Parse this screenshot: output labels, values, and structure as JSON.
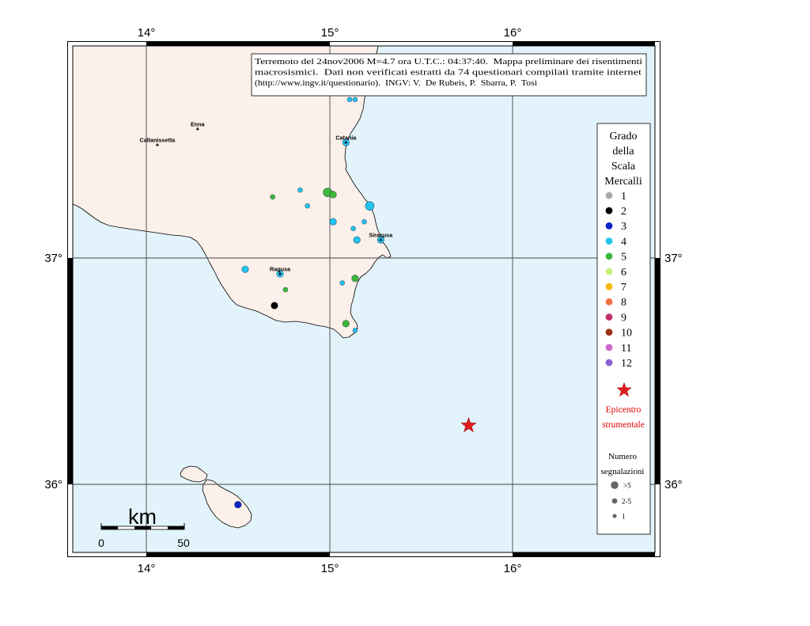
{
  "map": {
    "graticule": {
      "lon_labels": [
        "14°",
        "15°",
        "16°"
      ],
      "lat_labels": [
        "37°",
        "36°"
      ]
    },
    "colors": {
      "sea": "#e2f3fb",
      "land": "#fcf0ea",
      "grid": "#444444",
      "epicenter": "#e31d1d"
    },
    "cities": [
      {
        "name": "Enna",
        "lon": 14.28,
        "lat": 37.57
      },
      {
        "name": "Caltanissetta",
        "lon": 14.06,
        "lat": 37.5
      },
      {
        "name": "Catania",
        "lon": 15.09,
        "lat": 37.51
      },
      {
        "name": "Siracusa",
        "lon": 15.28,
        "lat": 37.08
      },
      {
        "name": "Ragusa",
        "lon": 14.73,
        "lat": 36.93
      }
    ],
    "epicenter": {
      "lon": 15.76,
      "lat": 36.26
    },
    "observations": [
      {
        "lon": 15.11,
        "lat": 37.7,
        "intensity": 4,
        "reports": "1"
      },
      {
        "lon": 15.14,
        "lat": 37.7,
        "intensity": 4,
        "reports": "1"
      },
      {
        "lon": 15.09,
        "lat": 37.51,
        "intensity": 4,
        "reports": "2-5"
      },
      {
        "lon": 14.69,
        "lat": 37.27,
        "intensity": 5,
        "reports": "1"
      },
      {
        "lon": 14.84,
        "lat": 37.3,
        "intensity": 4,
        "reports": "1"
      },
      {
        "lon": 14.88,
        "lat": 37.23,
        "intensity": 4,
        "reports": "1"
      },
      {
        "lon": 14.99,
        "lat": 37.29,
        "intensity": 5,
        "reports": ">5"
      },
      {
        "lon": 15.02,
        "lat": 37.28,
        "intensity": 5,
        "reports": "2-5"
      },
      {
        "lon": 15.22,
        "lat": 37.23,
        "intensity": 4,
        "reports": ">5"
      },
      {
        "lon": 15.02,
        "lat": 37.16,
        "intensity": 4,
        "reports": "2-5"
      },
      {
        "lon": 15.19,
        "lat": 37.16,
        "intensity": 4,
        "reports": "1"
      },
      {
        "lon": 15.13,
        "lat": 37.13,
        "intensity": 4,
        "reports": "1"
      },
      {
        "lon": 15.15,
        "lat": 37.08,
        "intensity": 4,
        "reports": "2-5"
      },
      {
        "lon": 15.28,
        "lat": 37.08,
        "intensity": 4,
        "reports": "2-5"
      },
      {
        "lon": 14.54,
        "lat": 36.95,
        "intensity": 4,
        "reports": "2-5"
      },
      {
        "lon": 14.73,
        "lat": 36.93,
        "intensity": 4,
        "reports": "2-5"
      },
      {
        "lon": 15.14,
        "lat": 36.91,
        "intensity": 5,
        "reports": "2-5"
      },
      {
        "lon": 15.07,
        "lat": 36.89,
        "intensity": 4,
        "reports": "1"
      },
      {
        "lon": 14.76,
        "lat": 36.86,
        "intensity": 5,
        "reports": "1"
      },
      {
        "lon": 14.7,
        "lat": 36.79,
        "intensity": 2,
        "reports": "2-5"
      },
      {
        "lon": 15.09,
        "lat": 36.71,
        "intensity": 5,
        "reports": "2-5"
      },
      {
        "lon": 15.14,
        "lat": 36.68,
        "intensity": 4,
        "reports": "1"
      },
      {
        "lon": 14.5,
        "lat": 35.91,
        "intensity": 3,
        "reports": "2-5"
      }
    ]
  },
  "info_box": {
    "lines": [
      "Terremoto del 24nov2006 M=4.7 ora U.T.C.: 04:37:40.  Mappa preliminare dei risentimenti",
      "macrosismici.  Dati non verificati estratti da 74 questionari compilati tramite internet",
      "(http://www.ingv.it/questionario).  INGV: V.  De Rubeis, P.  Sbarra, P.  Tosi"
    ]
  },
  "legend": {
    "title_lines": [
      "Grado",
      "della",
      "Scala",
      "Mercalli"
    ],
    "intensities": [
      {
        "label": "1",
        "color": "#aaaaaa"
      },
      {
        "label": "2",
        "color": "#000000"
      },
      {
        "label": "3",
        "color": "#0b24c4"
      },
      {
        "label": "4",
        "color": "#22c4ee"
      },
      {
        "label": "5",
        "color": "#3cb83c"
      },
      {
        "label": "6",
        "color": "#c6ee78"
      },
      {
        "label": "7",
        "color": "#f5b800"
      },
      {
        "label": "8",
        "color": "#f07040"
      },
      {
        "label": "9",
        "color": "#c0306a"
      },
      {
        "label": "10",
        "color": "#9a3210"
      },
      {
        "label": "11",
        "color": "#cc66cc"
      },
      {
        "label": "12",
        "color": "#8a5fcf"
      }
    ],
    "epicenter_lines": [
      "Epicentro",
      "strumentale"
    ],
    "reports_title_lines": [
      "Numero",
      "segnalazioni"
    ],
    "report_classes": [
      ">5",
      "2-5",
      "1"
    ],
    "report_dot_color": "#666666"
  },
  "scale_bar": {
    "unit": "km",
    "labels": [
      "0",
      "50"
    ]
  }
}
